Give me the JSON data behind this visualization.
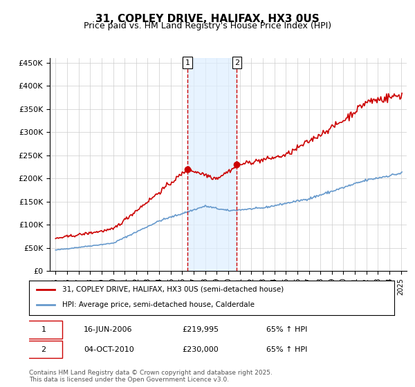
{
  "title": "31, COPLEY DRIVE, HALIFAX, HX3 0US",
  "subtitle": "Price paid vs. HM Land Registry's House Price Index (HPI)",
  "xlabel": "",
  "ylabel": "",
  "ylim": [
    0,
    460000
  ],
  "yticks": [
    0,
    50000,
    100000,
    150000,
    200000,
    250000,
    300000,
    350000,
    400000,
    450000
  ],
  "ytick_labels": [
    "£0",
    "£50K",
    "£100K",
    "£150K",
    "£200K",
    "£250K",
    "£300K",
    "£350K",
    "£400K",
    "£450K"
  ],
  "sale1_date_num": 2006.46,
  "sale1_price": 219995,
  "sale1_label": "1",
  "sale2_date_num": 2010.75,
  "sale2_price": 230000,
  "sale2_label": "2",
  "legend_line1": "31, COPLEY DRIVE, HALIFAX, HX3 0US (semi-detached house)",
  "legend_line2": "HPI: Average price, semi-detached house, Calderdale",
  "table_row1": [
    "1",
    "16-JUN-2006",
    "£219,995",
    "65% ↑ HPI"
  ],
  "table_row2": [
    "2",
    "04-OCT-2010",
    "£230,000",
    "65% ↑ HPI"
  ],
  "footer": "Contains HM Land Registry data © Crown copyright and database right 2025.\nThis data is licensed under the Open Government Licence v3.0.",
  "line_color_house": "#cc0000",
  "line_color_hpi": "#6699cc",
  "shade_color": "#ddeeff",
  "vline_color": "#cc0000",
  "background_color": "#ffffff",
  "grid_color": "#cccccc"
}
